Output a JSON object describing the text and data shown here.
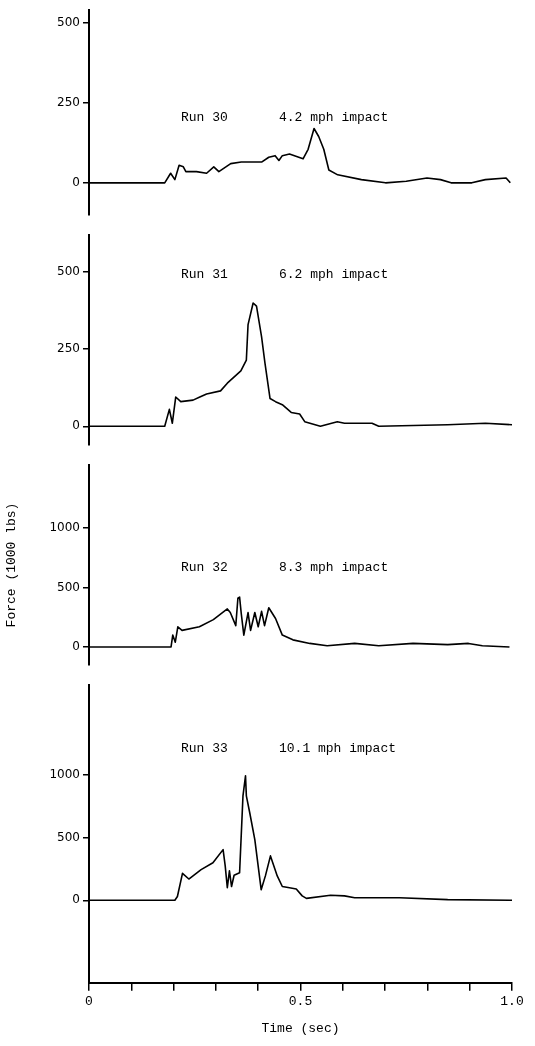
{
  "chart_data": [
    {
      "type": "line",
      "color": "#000000",
      "marker": "none",
      "tick_labels": "y",
      "xlim": [
        0,
        1.0
      ],
      "ylim": [
        -100,
        540
      ],
      "yticks": [
        0,
        250,
        500
      ],
      "annotations": [
        "Run 30",
        "4.2 mph impact"
      ],
      "x": [
        0,
        0.179,
        0.193,
        0.203,
        0.213,
        0.223,
        0.229,
        0.254,
        0.278,
        0.295,
        0.307,
        0.335,
        0.36,
        0.408,
        0.425,
        0.44,
        0.449,
        0.457,
        0.474,
        0.506,
        0.518,
        0.532,
        0.543,
        0.555,
        0.567,
        0.588,
        0.644,
        0.701,
        0.75,
        0.799,
        0.831,
        0.856,
        0.905,
        0.937,
        0.986,
        0.996
      ],
      "values": [
        0,
        0,
        30,
        10,
        55,
        50,
        35,
        35,
        30,
        50,
        35,
        60,
        65,
        65,
        80,
        85,
        70,
        85,
        90,
        75,
        105,
        170,
        145,
        105,
        40,
        25,
        10,
        0,
        5,
        15,
        10,
        0,
        0,
        10,
        15,
        0
      ]
    },
    {
      "type": "line",
      "color": "#000000",
      "marker": "none",
      "tick_labels": "y",
      "xlim": [
        0,
        1.0
      ],
      "ylim": [
        -60,
        620
      ],
      "yticks": [
        0,
        250,
        500
      ],
      "annotations": [
        "Run 31",
        "6.2 mph impact"
      ],
      "x": [
        0,
        0.179,
        0.19,
        0.197,
        0.205,
        0.217,
        0.246,
        0.262,
        0.278,
        0.311,
        0.327,
        0.359,
        0.372,
        0.376,
        0.388,
        0.396,
        0.408,
        0.416,
        0.428,
        0.441,
        0.457,
        0.478,
        0.498,
        0.51,
        0.547,
        0.587,
        0.604,
        0.669,
        0.685,
        0.848,
        0.937,
        1.0
      ],
      "values": [
        0,
        0,
        55,
        10,
        95,
        80,
        85,
        95,
        105,
        115,
        140,
        180,
        215,
        330,
        400,
        390,
        290,
        205,
        90,
        80,
        70,
        45,
        40,
        15,
        0,
        15,
        10,
        10,
        0,
        5,
        10,
        5
      ]
    },
    {
      "type": "line",
      "color": "#000000",
      "marker": "none",
      "tick_labels": "y",
      "xlim": [
        0,
        1.0
      ],
      "ylim": [
        -150,
        1530
      ],
      "yticks": [
        0,
        500,
        1000
      ],
      "ylabel": "Force (1000 lbs)",
      "annotations": [
        "Run 32",
        "8.3 mph impact"
      ],
      "x": [
        0,
        0.194,
        0.198,
        0.204,
        0.21,
        0.22,
        0.261,
        0.294,
        0.327,
        0.334,
        0.347,
        0.352,
        0.356,
        0.36,
        0.366,
        0.376,
        0.382,
        0.392,
        0.4,
        0.408,
        0.415,
        0.425,
        0.441,
        0.457,
        0.482,
        0.522,
        0.563,
        0.628,
        0.685,
        0.766,
        0.848,
        0.897,
        0.93,
        0.994
      ],
      "values": [
        0,
        0,
        100,
        40,
        170,
        140,
        170,
        230,
        320,
        290,
        180,
        410,
        420,
        280,
        100,
        290,
        140,
        290,
        170,
        300,
        180,
        330,
        240,
        100,
        60,
        30,
        10,
        30,
        10,
        30,
        20,
        30,
        10,
        0
      ]
    },
    {
      "type": "line",
      "color": "#000000",
      "marker": "none",
      "xlim": [
        0,
        1.0
      ],
      "ylim": [
        -660,
        1720
      ],
      "yticks": [
        0,
        500,
        1000
      ],
      "xticks": [
        0,
        {
          "value": 0.1,
          "label": null
        },
        {
          "value": 0.2,
          "label": null
        },
        {
          "value": 0.3,
          "label": null
        },
        {
          "value": 0.4,
          "label": null
        },
        0.5,
        {
          "value": 0.6,
          "label": null
        },
        {
          "value": 0.7,
          "label": null
        },
        {
          "value": 0.8,
          "label": null
        },
        {
          "value": 0.9,
          "label": null
        },
        {
          "value": 1.0,
          "label": "1.0"
        }
      ],
      "xlabel": "Time (sec)",
      "annotations": [
        "Run 33",
        "10.1 mph impact"
      ],
      "x": [
        0,
        0.203,
        0.209,
        0.221,
        0.236,
        0.265,
        0.293,
        0.317,
        0.322,
        0.327,
        0.332,
        0.337,
        0.343,
        0.356,
        0.364,
        0.37,
        0.372,
        0.38,
        0.392,
        0.407,
        0.417,
        0.429,
        0.445,
        0.457,
        0.474,
        0.49,
        0.504,
        0.514,
        0.571,
        0.604,
        0.628,
        0.734,
        0.848,
        1.0
      ],
      "values": [
        0,
        0,
        30,
        215,
        170,
        245,
        300,
        405,
        275,
        100,
        235,
        110,
        200,
        220,
        835,
        995,
        835,
        700,
        485,
        85,
        195,
        355,
        195,
        110,
        100,
        90,
        35,
        15,
        40,
        35,
        20,
        20,
        5,
        0
      ]
    }
  ]
}
